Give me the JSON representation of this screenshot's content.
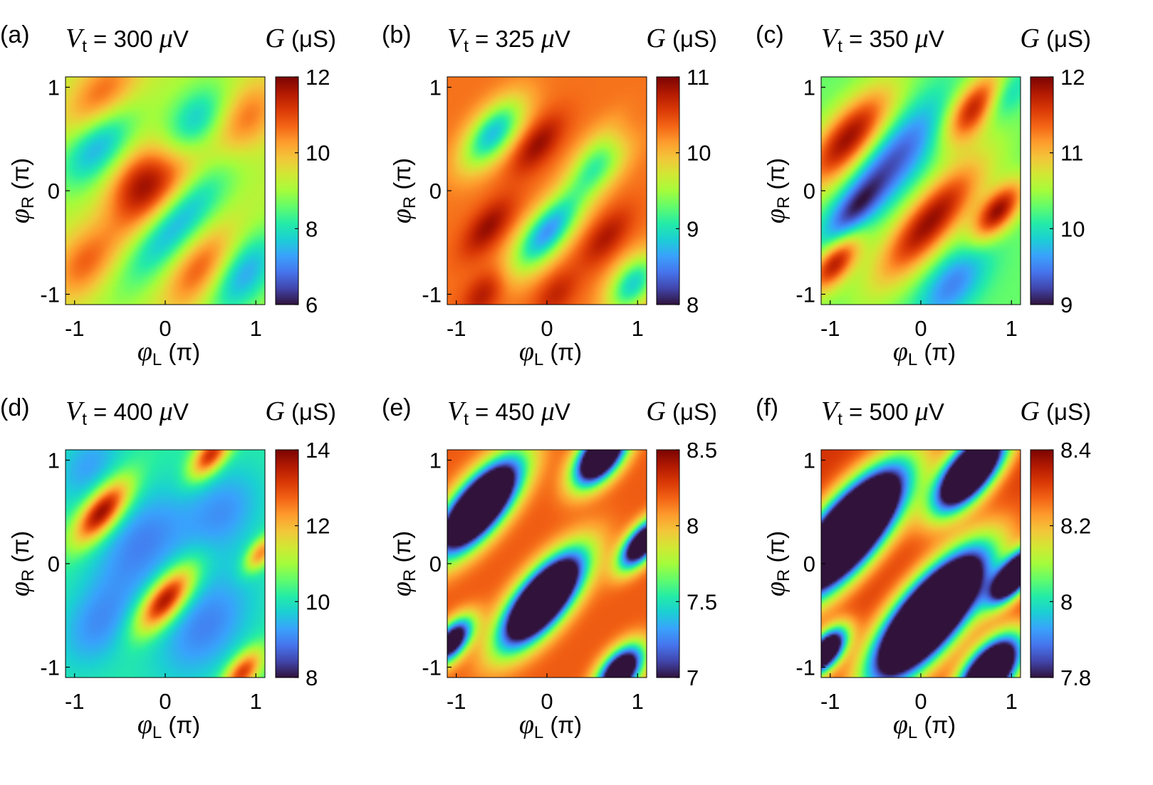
{
  "figure": {
    "panels_count": 6,
    "colormap": [
      "#30123b",
      "#4145ab",
      "#4675ed",
      "#39a2fc",
      "#1bcfd4",
      "#24eca6",
      "#61fc6c",
      "#a4fc3b",
      "#d1e834",
      "#f3c63a",
      "#fe9b2d",
      "#f36315",
      "#d93806",
      "#b11901",
      "#7a0402"
    ]
  },
  "chart_data": [
    {
      "type": "heatmap",
      "id": "a",
      "panel_label": "(a)",
      "title_prefix": "V",
      "title_subscript": "t",
      "title_value": " = 300 ",
      "title_unit_mu": "μ",
      "title_unit_rest": "V",
      "colorbar_title_symbol": "G",
      "colorbar_title_unit": " (μS)",
      "xlabel_symbol": "φ",
      "xlabel_subscript": "L",
      "xlabel_unit": " (π)",
      "ylabel_symbol": "φ",
      "ylabel_subscript": "R",
      "ylabel_unit": " (π)",
      "xlim": [
        -1.1,
        1.1
      ],
      "ylim": [
        -1.1,
        1.1
      ],
      "xticks": [
        -1,
        0,
        1
      ],
      "xtick_labels": [
        "-1",
        "0",
        "1"
      ],
      "yticks": [
        -1,
        0,
        1
      ],
      "ytick_labels": [
        "-1",
        "0",
        "1"
      ],
      "clim": [
        6,
        12
      ],
      "cticks": [
        6,
        8,
        10,
        12
      ],
      "ctick_labels": [
        "6",
        "8",
        "10",
        "12"
      ],
      "features": [
        {
          "kind": "blob",
          "x": 0.0,
          "y": 0.0,
          "v": 10.9,
          "sa": 0.2,
          "sb": 0.55
        },
        {
          "kind": "blob",
          "x": -0.3,
          "y": 0.1,
          "v": 11.0,
          "sa": 0.2,
          "sb": 0.3
        },
        {
          "kind": "blob",
          "x": 0.4,
          "y": -0.75,
          "v": 11.0,
          "sa": 0.2,
          "sb": 0.35
        },
        {
          "kind": "blob",
          "x": -0.7,
          "y": 0.9,
          "v": 10.9,
          "sa": 0.2,
          "sb": 0.35
        },
        {
          "kind": "blob",
          "x": 0.9,
          "y": 0.7,
          "v": 10.6,
          "sa": 0.2,
          "sb": 0.3
        },
        {
          "kind": "blob",
          "x": -0.9,
          "y": -0.7,
          "v": 10.6,
          "sa": 0.2,
          "sb": 0.3
        },
        {
          "kind": "blob",
          "x": 0.1,
          "y": -0.3,
          "v": 7.0,
          "sa": 0.2,
          "sb": 0.55
        },
        {
          "kind": "blob",
          "x": 0.85,
          "y": -0.8,
          "v": 7.2,
          "sa": 0.2,
          "sb": 0.35
        },
        {
          "kind": "blob",
          "x": -0.75,
          "y": 0.45,
          "v": 7.2,
          "sa": 0.2,
          "sb": 0.35
        },
        {
          "kind": "blob",
          "x": 0.35,
          "y": 0.65,
          "v": 7.4,
          "sa": 0.2,
          "sb": 0.3
        }
      ],
      "base": 9.2
    },
    {
      "type": "heatmap",
      "id": "b",
      "panel_label": "(b)",
      "title_prefix": "V",
      "title_subscript": "t",
      "title_value": " = 325 ",
      "title_unit_mu": "μ",
      "title_unit_rest": "V",
      "colorbar_title_symbol": "G",
      "colorbar_title_unit": " (μS)",
      "xlabel_symbol": "φ",
      "xlabel_subscript": "L",
      "xlabel_unit": " (π)",
      "ylabel_symbol": "φ",
      "ylabel_subscript": "R",
      "ylabel_unit": " (π)",
      "xlim": [
        -1.1,
        1.1
      ],
      "ylim": [
        -1.1,
        1.1
      ],
      "xticks": [
        -1,
        0,
        1
      ],
      "xtick_labels": [
        "-1",
        "0",
        "1"
      ],
      "yticks": [
        -1,
        0,
        1
      ],
      "ytick_labels": [
        "-1",
        "0",
        "1"
      ],
      "clim": [
        8,
        11
      ],
      "cticks": [
        8,
        9,
        10,
        11
      ],
      "ctick_labels": [
        "8",
        "9",
        "10",
        "11"
      ],
      "features": [
        {
          "kind": "blob",
          "x": 0.0,
          "y": -0.4,
          "v": 8.6,
          "sa": 0.15,
          "sb": 0.35
        },
        {
          "kind": "blob",
          "x": -0.6,
          "y": 0.55,
          "v": 8.8,
          "sa": 0.15,
          "sb": 0.3
        },
        {
          "kind": "blob",
          "x": 0.6,
          "y": 0.3,
          "v": 8.9,
          "sa": 0.15,
          "sb": 0.3
        },
        {
          "kind": "blob",
          "x": 0.95,
          "y": -0.9,
          "v": 8.9,
          "sa": 0.15,
          "sb": 0.25
        },
        {
          "kind": "blob",
          "x": -0.1,
          "y": 0.45,
          "v": 10.9,
          "sa": 0.12,
          "sb": 0.25
        },
        {
          "kind": "blob",
          "x": -0.65,
          "y": -0.35,
          "v": 10.9,
          "sa": 0.12,
          "sb": 0.25
        },
        {
          "kind": "blob",
          "x": 0.65,
          "y": -0.45,
          "v": 10.8,
          "sa": 0.12,
          "sb": 0.25
        },
        {
          "kind": "blob",
          "x": 0.75,
          "y": 0.45,
          "v": 10.8,
          "sa": 0.12,
          "sb": 0.25
        },
        {
          "kind": "blob",
          "x": -0.7,
          "y": -1.0,
          "v": 10.8,
          "sa": 0.12,
          "sb": 0.2
        },
        {
          "kind": "blob",
          "x": 0.1,
          "y": -1.0,
          "v": 10.7,
          "sa": 0.12,
          "sb": 0.2
        }
      ],
      "base": 10.3
    },
    {
      "type": "heatmap",
      "id": "c",
      "panel_label": "(c)",
      "title_prefix": "V",
      "title_subscript": "t",
      "title_value": " = 350 ",
      "title_unit_mu": "μ",
      "title_unit_rest": "V",
      "colorbar_title_symbol": "G",
      "colorbar_title_unit": " (μS)",
      "xlabel_symbol": "φ",
      "xlabel_subscript": "L",
      "xlabel_unit": " (π)",
      "ylabel_symbol": "φ",
      "ylabel_subscript": "R",
      "ylabel_unit": " (π)",
      "xlim": [
        -1.1,
        1.1
      ],
      "ylim": [
        -1.1,
        1.1
      ],
      "xticks": [
        -1,
        0,
        1
      ],
      "xtick_labels": [
        "-1",
        "0",
        "1"
      ],
      "yticks": [
        -1,
        0,
        1
      ],
      "ytick_labels": [
        "-1",
        "0",
        "1"
      ],
      "clim": [
        9,
        12
      ],
      "cticks": [
        9,
        10,
        11,
        12
      ],
      "ctick_labels": [
        "9",
        "10",
        "11",
        "12"
      ],
      "features": [
        {
          "kind": "blob",
          "x": 0.1,
          "y": -0.3,
          "v": 11.9,
          "sa": 0.18,
          "sb": 0.55
        },
        {
          "kind": "blob",
          "x": -0.8,
          "y": 0.5,
          "v": 11.9,
          "sa": 0.18,
          "sb": 0.45
        },
        {
          "kind": "blob",
          "x": 0.6,
          "y": 0.8,
          "v": 11.9,
          "sa": 0.15,
          "sb": 0.3
        },
        {
          "kind": "blob",
          "x": 0.85,
          "y": -0.2,
          "v": 11.9,
          "sa": 0.12,
          "sb": 0.25
        },
        {
          "kind": "blob",
          "x": -0.95,
          "y": -0.7,
          "v": 11.8,
          "sa": 0.12,
          "sb": 0.25
        },
        {
          "kind": "blob",
          "x": -0.3,
          "y": 0.3,
          "v": 9.3,
          "sa": 0.2,
          "sb": 0.55
        },
        {
          "kind": "blob",
          "x": 0.35,
          "y": -0.9,
          "v": 9.5,
          "sa": 0.18,
          "sb": 0.35
        },
        {
          "kind": "blob",
          "x": -0.75,
          "y": -0.2,
          "v": 9.5,
          "sa": 0.12,
          "sb": 0.3
        },
        {
          "kind": "blob",
          "x": 0.9,
          "y": 0.9,
          "v": 9.6,
          "sa": 0.12,
          "sb": 0.25
        }
      ],
      "base": 10.3
    },
    {
      "type": "heatmap",
      "id": "d",
      "panel_label": "(d)",
      "title_prefix": "V",
      "title_subscript": "t",
      "title_value": " = 400 ",
      "title_unit_mu": "μ",
      "title_unit_rest": "V",
      "colorbar_title_symbol": "G",
      "colorbar_title_unit": " (μS)",
      "xlabel_symbol": "φ",
      "xlabel_subscript": "L",
      "xlabel_unit": " (π)",
      "ylabel_symbol": "φ",
      "ylabel_subscript": "R",
      "ylabel_unit": " (π)",
      "xlim": [
        -1.1,
        1.1
      ],
      "ylim": [
        -1.1,
        1.1
      ],
      "xticks": [
        -1,
        0,
        1
      ],
      "xtick_labels": [
        "-1",
        "0",
        "1"
      ],
      "yticks": [
        -1,
        0,
        1
      ],
      "ytick_labels": [
        "-1",
        "0",
        "1"
      ],
      "clim": [
        8,
        14
      ],
      "cticks": [
        8,
        10,
        12,
        14
      ],
      "ctick_labels": [
        "8",
        "10",
        "12",
        "14"
      ],
      "features": [
        {
          "kind": "blob",
          "x": -0.7,
          "y": 0.5,
          "v": 14.0,
          "sa": 0.12,
          "sb": 0.28
        },
        {
          "kind": "blob",
          "x": 0.0,
          "y": -0.35,
          "v": 14.0,
          "sa": 0.12,
          "sb": 0.28
        },
        {
          "kind": "blob",
          "x": 0.5,
          "y": 1.05,
          "v": 13.4,
          "sa": 0.1,
          "sb": 0.2
        },
        {
          "kind": "blob",
          "x": 0.85,
          "y": -1.05,
          "v": 13.2,
          "sa": 0.1,
          "sb": 0.2
        },
        {
          "kind": "blob",
          "x": 1.05,
          "y": 0.1,
          "v": 12.6,
          "sa": 0.08,
          "sb": 0.15
        },
        {
          "kind": "blob",
          "x": -0.25,
          "y": 0.2,
          "v": 9.0,
          "sa": 0.28,
          "sb": 0.45
        },
        {
          "kind": "blob",
          "x": 0.45,
          "y": -0.6,
          "v": 9.0,
          "sa": 0.28,
          "sb": 0.45
        },
        {
          "kind": "blob",
          "x": -0.75,
          "y": -0.6,
          "v": 9.2,
          "sa": 0.25,
          "sb": 0.35
        },
        {
          "kind": "blob",
          "x": 0.65,
          "y": 0.5,
          "v": 9.2,
          "sa": 0.25,
          "sb": 0.35
        },
        {
          "kind": "blob",
          "x": -0.85,
          "y": 0.95,
          "v": 9.3,
          "sa": 0.2,
          "sb": 0.3
        }
      ],
      "base": 10.2
    },
    {
      "type": "heatmap",
      "id": "e",
      "panel_label": "(e)",
      "title_prefix": "V",
      "title_subscript": "t",
      "title_value": " = 450 ",
      "title_unit_mu": "μ",
      "title_unit_rest": "V",
      "colorbar_title_symbol": "G",
      "colorbar_title_unit": " (μS)",
      "xlabel_symbol": "φ",
      "xlabel_subscript": "L",
      "xlabel_unit": " (π)",
      "ylabel_symbol": "φ",
      "ylabel_subscript": "R",
      "ylabel_unit": " (π)",
      "xlim": [
        -1.1,
        1.1
      ],
      "ylim": [
        -1.1,
        1.1
      ],
      "xticks": [
        -1,
        0,
        1
      ],
      "xtick_labels": [
        "-1",
        "0",
        "1"
      ],
      "yticks": [
        -1,
        0,
        1
      ],
      "ytick_labels": [
        "-1",
        "0",
        "1"
      ],
      "clim": [
        7,
        8.5
      ],
      "cticks": [
        7,
        7.5,
        8,
        8.5
      ],
      "ctick_labels": [
        "7",
        "7.5",
        "8",
        "8.5"
      ],
      "features": [
        {
          "kind": "blob",
          "x": -0.75,
          "y": 0.55,
          "v": 5.6,
          "sa": 0.16,
          "sb": 0.4
        },
        {
          "kind": "blob",
          "x": -0.05,
          "y": -0.35,
          "v": 5.6,
          "sa": 0.16,
          "sb": 0.4
        },
        {
          "kind": "blob",
          "x": 0.6,
          "y": 1.05,
          "v": 6.0,
          "sa": 0.13,
          "sb": 0.25
        },
        {
          "kind": "blob",
          "x": 1.05,
          "y": 0.2,
          "v": 6.4,
          "sa": 0.1,
          "sb": 0.22
        },
        {
          "kind": "blob",
          "x": 0.8,
          "y": -1.05,
          "v": 6.3,
          "sa": 0.12,
          "sb": 0.22
        },
        {
          "kind": "blob",
          "x": -1.05,
          "y": -0.75,
          "v": 6.6,
          "sa": 0.1,
          "sb": 0.2
        }
      ],
      "base": 8.2
    },
    {
      "type": "heatmap",
      "id": "f",
      "panel_label": "(f)",
      "title_prefix": "V",
      "title_subscript": "t",
      "title_value": " = 500 ",
      "title_unit_mu": "μ",
      "title_unit_rest": "V",
      "colorbar_title_symbol": "G",
      "colorbar_title_unit": " (μS)",
      "xlabel_symbol": "φ",
      "xlabel_subscript": "L",
      "xlabel_unit": " (π)",
      "ylabel_symbol": "φ",
      "ylabel_subscript": "R",
      "ylabel_unit": " (π)",
      "xlim": [
        -1.1,
        1.1
      ],
      "ylim": [
        -1.1,
        1.1
      ],
      "xticks": [
        -1,
        0,
        1
      ],
      "xtick_labels": [
        "-1",
        "0",
        "1"
      ],
      "yticks": [
        -1,
        0,
        1
      ],
      "ytick_labels": [
        "-1",
        "0",
        "1"
      ],
      "clim": [
        7.8,
        8.4
      ],
      "cticks": [
        7.8,
        8,
        8.2,
        8.4
      ],
      "ctick_labels": [
        "7.8",
        "8",
        "8.2",
        "8.4"
      ],
      "features": [
        {
          "kind": "blob",
          "x": -0.8,
          "y": 0.3,
          "v": 7.0,
          "sa": 0.2,
          "sb": 0.55
        },
        {
          "kind": "blob",
          "x": 0.1,
          "y": -0.5,
          "v": 7.0,
          "sa": 0.2,
          "sb": 0.55
        },
        {
          "kind": "blob",
          "x": 0.55,
          "y": 0.9,
          "v": 7.3,
          "sa": 0.15,
          "sb": 0.35
        },
        {
          "kind": "blob",
          "x": 0.75,
          "y": -1.05,
          "v": 7.3,
          "sa": 0.15,
          "sb": 0.3
        },
        {
          "kind": "blob",
          "x": 1.05,
          "y": -0.1,
          "v": 7.4,
          "sa": 0.1,
          "sb": 0.25
        },
        {
          "kind": "blob",
          "x": -1.05,
          "y": -0.85,
          "v": 7.5,
          "sa": 0.1,
          "sb": 0.2
        }
      ],
      "base": 8.32
    }
  ]
}
